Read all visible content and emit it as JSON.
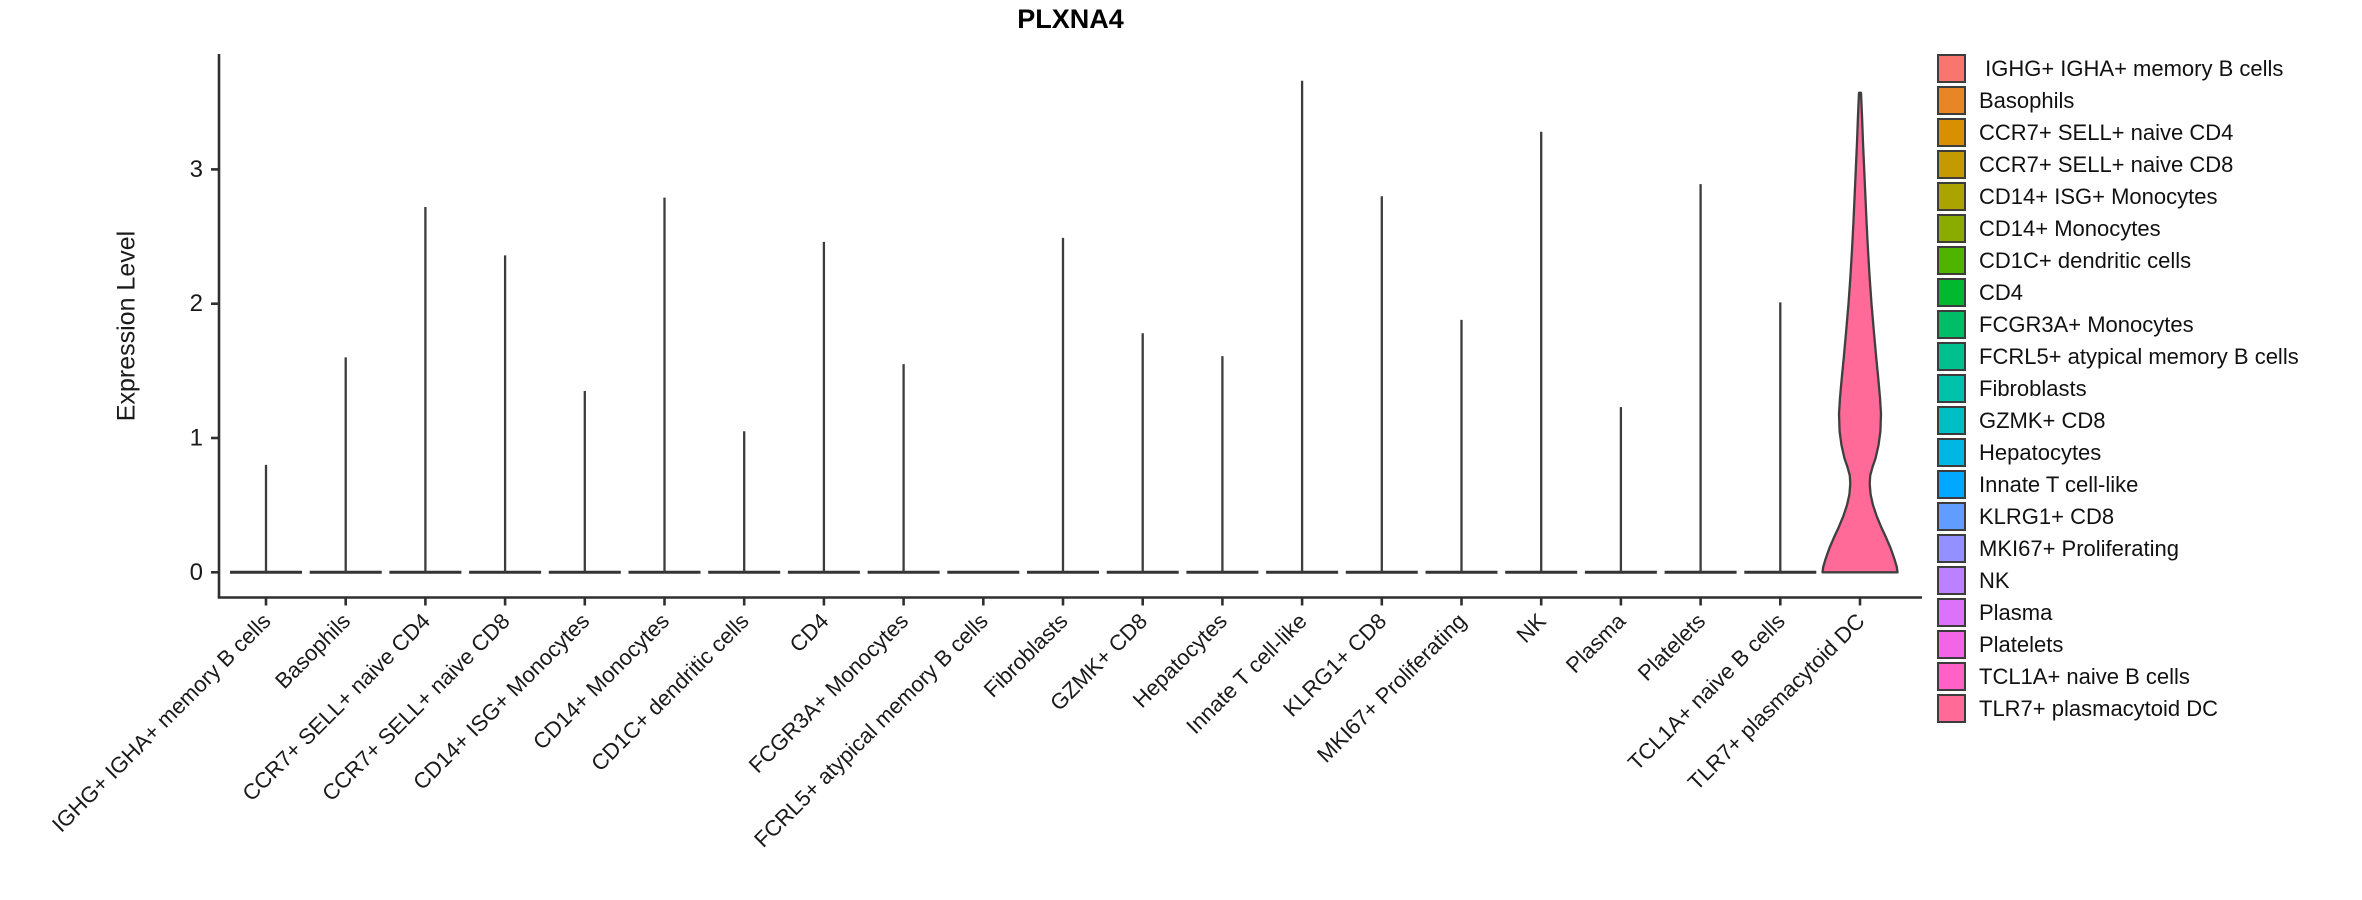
{
  "title": "PLXNA4",
  "y_axis": {
    "label": "Expression Level"
  },
  "legend": {
    "position": "right",
    "items": [
      {
        "label": " IGHG+ IGHA+ memory B cells",
        "color": "#F8766D"
      },
      {
        "label": "Basophils",
        "color": "#E88526"
      },
      {
        "label": "CCR7+ SELL+ naive CD4",
        "color": "#D89000"
      },
      {
        "label": "CCR7+ SELL+ naive CD8",
        "color": "#C49A00"
      },
      {
        "label": "CD14+ ISG+ Monocytes",
        "color": "#ABA300"
      },
      {
        "label": "CD14+ Monocytes",
        "color": "#8CAB00"
      },
      {
        "label": "CD1C+ dendritic cells",
        "color": "#4FB400"
      },
      {
        "label": "CD4",
        "color": "#00B92F"
      },
      {
        "label": "FCGR3A+ Monocytes",
        "color": "#00BD68"
      },
      {
        "label": "FCRL5+ atypical memory B cells",
        "color": "#00C08D"
      },
      {
        "label": "Fibroblasts",
        "color": "#00C1A9"
      },
      {
        "label": "GZMK+ CD8",
        "color": "#00BFC4"
      },
      {
        "label": "Hepatocytes",
        "color": "#00B7E4"
      },
      {
        "label": "Innate T cell-like",
        "color": "#00A8FF"
      },
      {
        "label": "KLRG1+ CD8",
        "color": "#619CFF"
      },
      {
        "label": "MKI67+ Proliferating",
        "color": "#9590FF"
      },
      {
        "label": "NK",
        "color": "#BC81FF"
      },
      {
        "label": "Plasma",
        "color": "#DC71FA"
      },
      {
        "label": "Platelets",
        "color": "#F265E7"
      },
      {
        "label": "TCL1A+ naive B cells",
        "color": "#FF61C7"
      },
      {
        "label": "TLR7+ plasmacytoid DC",
        "color": "#FF6A98"
      }
    ]
  },
  "chart_data": {
    "type": "violin",
    "title": "PLXNA4",
    "ylabel": "Expression Level",
    "xlabel": "",
    "ylim": [
      0,
      3.86
    ],
    "y_ticks": [
      0,
      1,
      2,
      3
    ],
    "grid": false,
    "legend_position": "right",
    "categories": [
      "IGHG+ IGHA+ memory B cells",
      "Basophils",
      "CCR7+ SELL+ naive CD4",
      "CCR7+ SELL+ naive CD8",
      "CD14+ ISG+ Monocytes",
      "CD14+ Monocytes",
      "CD1C+ dendritic cells",
      "CD4",
      "FCGR3A+ Monocytes",
      "FCRL5+ atypical memory B cells",
      "Fibroblasts",
      "GZMK+ CD8",
      "Hepatocytes",
      "Innate T cell-like",
      "KLRG1+ CD8",
      "MKI67+ Proliferating",
      "NK",
      "Plasma",
      "Platelets",
      "TCL1A+ naive B cells",
      "TLR7+ plasmacytoid DC"
    ],
    "colors": [
      "#F8766D",
      "#E88526",
      "#D89000",
      "#C49A00",
      "#ABA300",
      "#8CAB00",
      "#4FB400",
      "#00B92F",
      "#00BD68",
      "#00C08D",
      "#00C1A9",
      "#00BFC4",
      "#00B7E4",
      "#00A8FF",
      "#619CFF",
      "#9590FF",
      "#BC81FF",
      "#DC71FA",
      "#F265E7",
      "#FF61C7",
      "#FF6A98"
    ],
    "series": [
      {
        "name": "max_expression_level",
        "values": [
          0.8,
          1.6,
          2.72,
          2.36,
          1.35,
          2.79,
          1.05,
          2.46,
          1.55,
          0,
          2.49,
          1.78,
          1.61,
          3.66,
          2.8,
          1.88,
          3.28,
          1.23,
          2.89,
          2.01,
          3.57
        ]
      }
    ],
    "note": "All violins are collapsed to thin vertical spikes over a flat baseline at 0, except TLR7+ plasmacytoid DC which shows a full violin distribution.",
    "full_violin_category": "TLR7+ plasmacytoid DC",
    "full_violin_profile": [
      [
        3.57,
        0.027
      ],
      [
        3.4,
        0.053
      ],
      [
        3.2,
        0.08
      ],
      [
        3.0,
        0.112
      ],
      [
        2.8,
        0.144
      ],
      [
        2.6,
        0.176
      ],
      [
        2.4,
        0.213
      ],
      [
        2.2,
        0.256
      ],
      [
        2.0,
        0.307
      ],
      [
        1.8,
        0.368
      ],
      [
        1.6,
        0.432
      ],
      [
        1.45,
        0.485
      ],
      [
        1.3,
        0.533
      ],
      [
        1.18,
        0.56
      ],
      [
        1.05,
        0.544
      ],
      [
        0.95,
        0.496
      ],
      [
        0.85,
        0.416
      ],
      [
        0.78,
        0.331
      ],
      [
        0.72,
        0.272
      ],
      [
        0.66,
        0.259
      ],
      [
        0.58,
        0.283
      ],
      [
        0.5,
        0.347
      ],
      [
        0.42,
        0.443
      ],
      [
        0.34,
        0.56
      ],
      [
        0.26,
        0.693
      ],
      [
        0.18,
        0.816
      ],
      [
        0.1,
        0.917
      ],
      [
        0.04,
        0.981
      ],
      [
        0.0,
        1.0
      ]
    ]
  }
}
